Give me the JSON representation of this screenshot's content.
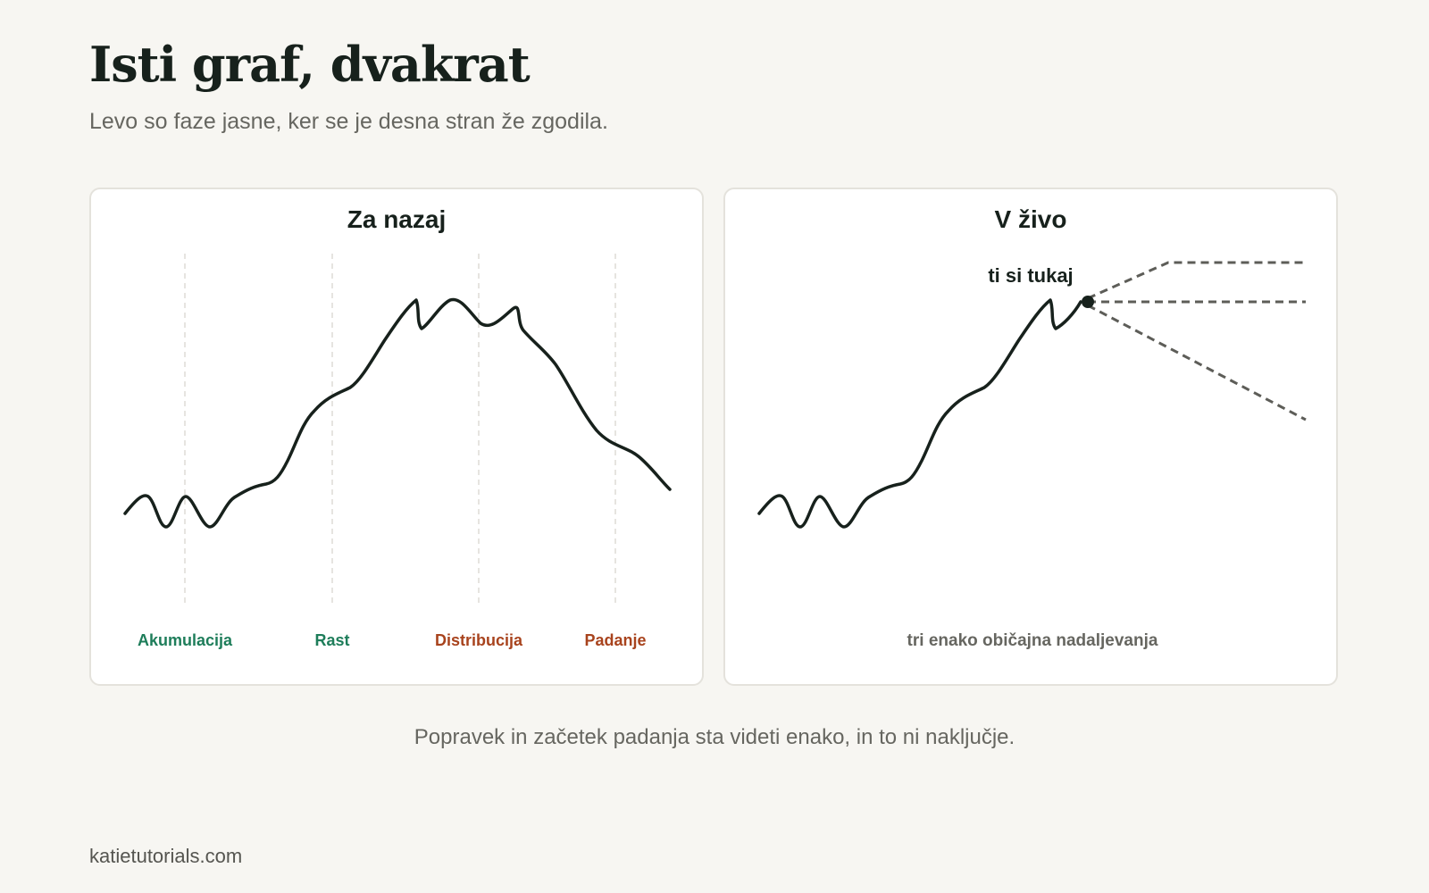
{
  "header": {
    "title": "Isti graf, dvakrat",
    "subtitle": "Levo so faze jasne, ker se je desna stran že zgodila."
  },
  "left_panel": {
    "title": "Za nazaj",
    "phases": [
      {
        "label": "Akumulacija",
        "color": "#1e7d5a"
      },
      {
        "label": "Rast",
        "color": "#1e7d5a"
      },
      {
        "label": "Distribucija",
        "color": "#a8431d"
      },
      {
        "label": "Padanje",
        "color": "#a8431d"
      }
    ]
  },
  "right_panel": {
    "title": "V živo",
    "marker_label": "ti si tukaj",
    "outcomes_caption": "tri enako običajna nadaljevanja"
  },
  "caption": "Popravek in začetek padanja sta videti enako, in to ni naključje.",
  "footer": "katietutorials.com",
  "colors": {
    "background": "#f7f6f2",
    "line": "#17211c",
    "projection": "#5d5d58",
    "accumulation_green": "#1e7d5a",
    "distribution_red": "#a8431d"
  }
}
